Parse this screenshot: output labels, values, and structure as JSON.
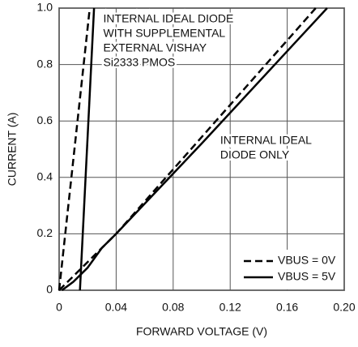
{
  "chart_data": {
    "type": "line",
    "xlabel": "FORWARD VOLTAGE (V)",
    "ylabel": "CURRENT (A)",
    "xlim": [
      0,
      0.2
    ],
    "ylim": [
      0,
      1
    ],
    "xticks": [
      0,
      0.04,
      0.08,
      0.12,
      0.16,
      {
        "value": 0.2,
        "label": "0.20"
      }
    ],
    "yticks": [
      0,
      0.2,
      0.4,
      0.6,
      0.8,
      {
        "value": 1,
        "label": "1.0"
      }
    ],
    "grid": true,
    "legend": "lower right",
    "series": [
      {
        "name": "VBUS = 0V",
        "color": "#000000",
        "dash": true,
        "x": [
          0,
          0.04,
          0.18
        ],
        "values": [
          0,
          0.2,
          1.0
        ]
      },
      {
        "name": "VBUS = 5V",
        "color": "#000000",
        "dash": false,
        "x": [
          0.002,
          0.01,
          0.02,
          0.03,
          0.04,
          0.1,
          0.188
        ],
        "values": [
          0,
          0.03,
          0.08,
          0.15,
          0.2,
          0.52,
          1.0
        ]
      },
      {
        "color": "#000000",
        "dash": true,
        "x": [
          0,
          0.0215
        ],
        "values": [
          0,
          1.0
        ]
      },
      {
        "color": "#000000",
        "dash": false,
        "x": [
          0.0146,
          0.0245
        ],
        "values": [
          0,
          1.0
        ]
      }
    ],
    "annotations": [
      {
        "lines": [
          "INTERNAL IDEAL DIODE",
          "WITH SUPPLEMENTAL",
          "EXTERNAL VISHAY",
          "Si2333 PMOS"
        ],
        "x": 0.031,
        "y": 0.96
      },
      {
        "lines": [
          "INTERNAL IDEAL",
          "DIODE ONLY"
        ],
        "x": 0.113,
        "y": 0.53
      }
    ]
  }
}
